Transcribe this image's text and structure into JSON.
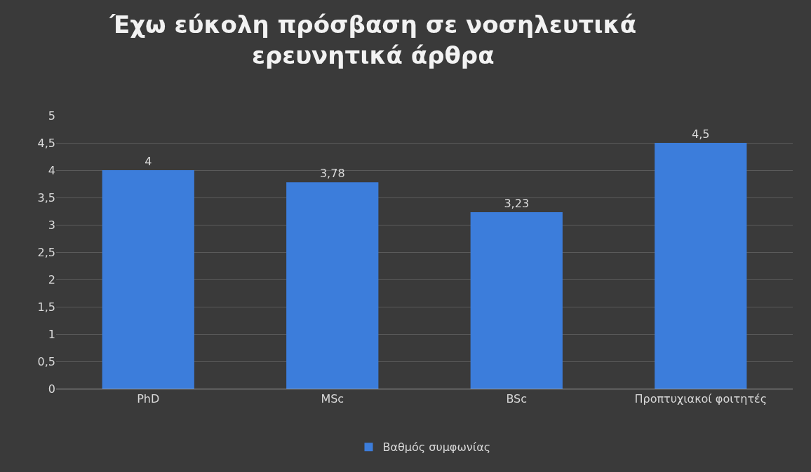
{
  "chart_data": {
    "type": "bar",
    "title": "Έχω εύκολη πρόσβαση σε νοσηλευτικά ερευνητικά άρθρα",
    "categories": [
      "PhD",
      "MSc",
      "BSc",
      "Προπτυχιακοί φοιτητές"
    ],
    "series": [
      {
        "name": "Βαθμός συμφωνίας",
        "color": "#3c7ddb",
        "values": [
          4,
          3.78,
          3.23,
          4.5
        ],
        "value_labels": [
          "4",
          "3,78",
          "3,23",
          "4,5"
        ]
      }
    ],
    "ylim": [
      0,
      5
    ],
    "yticks": [
      0,
      {
        "value": 0.5,
        "label": "0,5"
      },
      1,
      {
        "value": 1.5,
        "label": "1,5"
      },
      2,
      {
        "value": 2.5,
        "label": "2,5"
      },
      3,
      {
        "value": 3.5,
        "label": "3,5"
      },
      4,
      {
        "value": 4.5,
        "label": "4,5"
      },
      5
    ],
    "grid": "y",
    "legend": "bottom"
  }
}
